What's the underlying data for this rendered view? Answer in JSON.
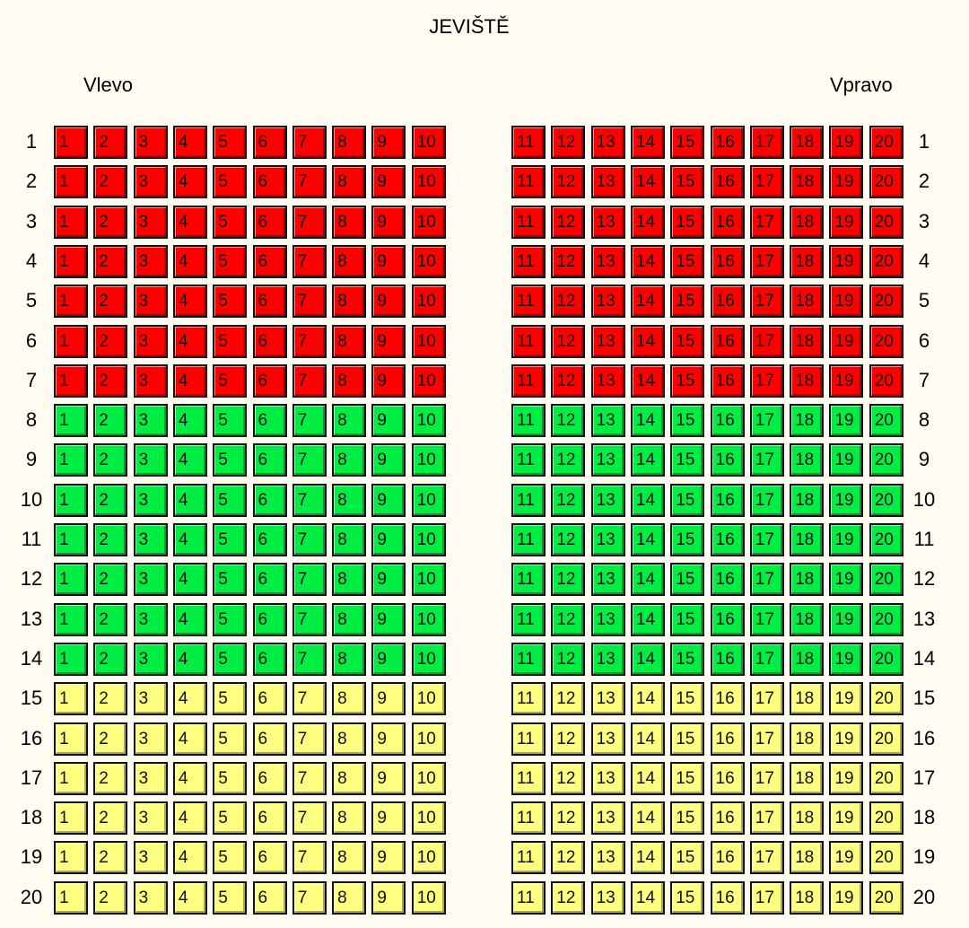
{
  "stage_label": "JEVIŠTĚ",
  "left_label": "Vlevo",
  "right_label": "Vpravo",
  "status_colors": {
    "occupied": "#ff0000",
    "available": "#00ee44",
    "reserved": "#ffff80"
  },
  "left_seats": [
    "1",
    "2",
    "3",
    "4",
    "5",
    "6",
    "7",
    "8",
    "9",
    "10"
  ],
  "right_seats": [
    "11",
    "12",
    "13",
    "14",
    "15",
    "16",
    "17",
    "18",
    "19",
    "20"
  ],
  "rows": [
    {
      "label": "1",
      "status": "occupied"
    },
    {
      "label": "2",
      "status": "occupied"
    },
    {
      "label": "3",
      "status": "occupied"
    },
    {
      "label": "4",
      "status": "occupied"
    },
    {
      "label": "5",
      "status": "occupied"
    },
    {
      "label": "6",
      "status": "occupied"
    },
    {
      "label": "7",
      "status": "occupied"
    },
    {
      "label": "8",
      "status": "available"
    },
    {
      "label": "9",
      "status": "available"
    },
    {
      "label": "10",
      "status": "available"
    },
    {
      "label": "11",
      "status": "available"
    },
    {
      "label": "12",
      "status": "available"
    },
    {
      "label": "13",
      "status": "available"
    },
    {
      "label": "14",
      "status": "available"
    },
    {
      "label": "15",
      "status": "reserved"
    },
    {
      "label": "16",
      "status": "reserved"
    },
    {
      "label": "17",
      "status": "reserved"
    },
    {
      "label": "18",
      "status": "reserved"
    },
    {
      "label": "19",
      "status": "reserved"
    },
    {
      "label": "20",
      "status": "reserved"
    }
  ]
}
